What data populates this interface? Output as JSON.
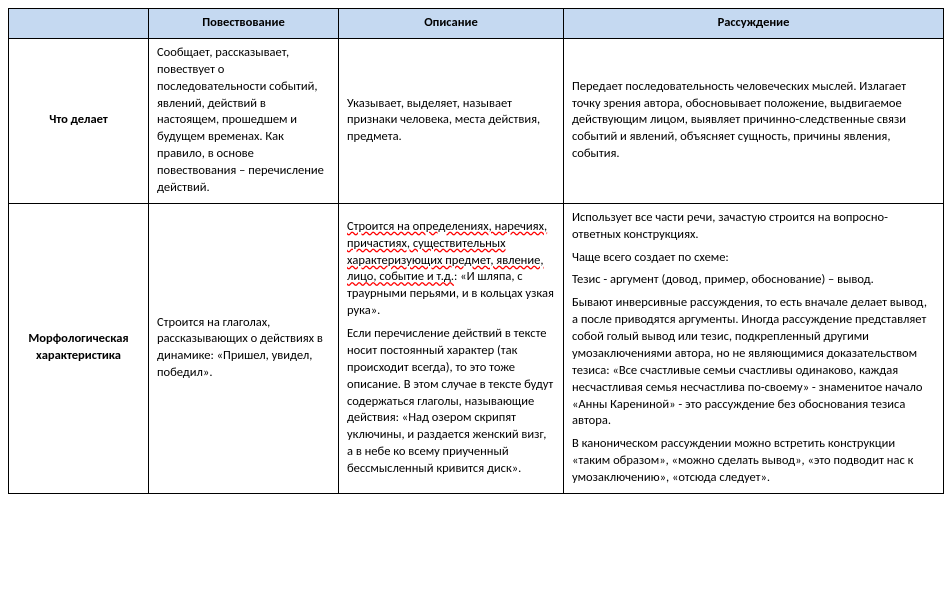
{
  "headers": {
    "blank": "",
    "c1": "Повествование",
    "c2": "Описание",
    "c3": "Рассуждение"
  },
  "rows": {
    "r1": {
      "label": "Что делает",
      "c1": "Сообщает, рассказывает, повествует о последовательности событий, явлений, действий в настоящем, прошедшем и будущем временах. Как правило, в основе повествования – перечисление действий.",
      "c2": "Указывает, выделяет, называет признаки человека, места действия, предмета.",
      "c3": "Передает последовательность человеческих мыслей. Излагает точку зрения автора, обосновывает положение, выдвигаемое действующим лицом, выявляет причинно-следственные связи событий и явлений, объясняет сущность, причины явления, события."
    },
    "r2": {
      "label": "Морфологическая характеристика",
      "c1_p1": "Строится на глаголах, рассказывающих о действиях в динамике: «Пришел, увидел, победил».",
      "c2_p1a": "Строится на определениях, наречиях, причастиях, существительных характеризующих предмет, явление, лицо, событие и т.д.",
      "c2_p1b": ": «И шляпа, с траурными перьями, и в кольцах узкая рука».",
      "c2_p2": "Если перечисление действий в тексте носит постоянный характер (так происходит всегда), то это тоже описание. В этом случае в тексте будут содержаться глаголы, называющие действия: «Над озером скрипят уключины, и раздается женский визг, а в небе ко всему приученный бессмысленный кривится диск».",
      "c3_p1": "Использует все части речи, зачастую строится на вопросно-ответных конструкциях.",
      "c3_p2": "Чаще всего создает по схеме:",
      "c3_p3": "Тезис - аргумент (довод, пример, обоснование) – вывод.",
      "c3_p4": "Бывают инверсивные рассуждения, то есть вначале делает вывод, а после приводятся аргументы. Иногда рассуждение представляет собой голый вывод или тезис, подкрепленный другими умозаключениями автора, но не являющимися доказательством тезиса: «Все счастливые семьи счастливы одинаково, каждая несчастливая семья несчастлива по-своему» - знаменитое начало «Анны Карениной» - это рассуждение без обоснования тезиса автора.",
      "c3_p5": "В каноническом рассуждении можно встретить конструкции «таким образом», «можно сделать вывод», «это подводит нас к умозаключению», «отсюда следует»."
    }
  },
  "style": {
    "header_bg": "#c5d9f1",
    "border_color": "#000000",
    "squiggle_color": "#ff0000",
    "font_family": "Calibri",
    "font_size_pt": 9.5
  }
}
